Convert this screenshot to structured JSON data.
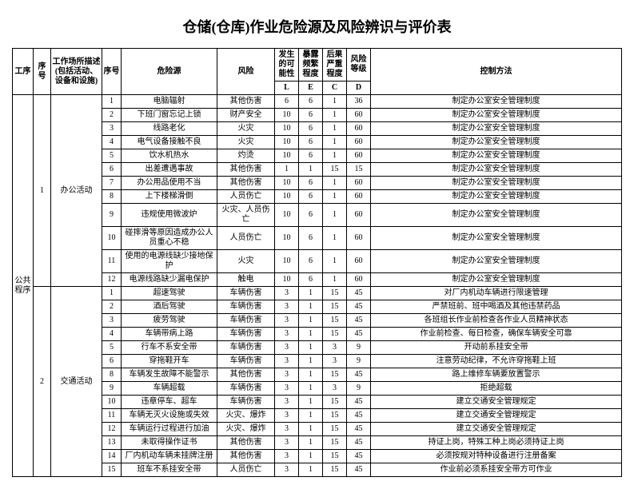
{
  "title": "仓储(仓库)作业危险源及风险辨识与评价表",
  "headers": {
    "gongxu": "工序",
    "xuhao": "序号",
    "changsuo": "工作场所描述\n(包括活动、设备和设施)",
    "xuhao2": "序号",
    "weixianyuan": "危险源",
    "fengxian": "风险",
    "L": "发生的可能性",
    "E": "暴露频繁程度",
    "C": "后果严重程度",
    "D": "风险等级",
    "Lsub": "L",
    "Esub": "E",
    "Csub": "C",
    "Dsub": "D",
    "kongzhi": "控制方法"
  },
  "gongxu_label": "公共程序",
  "groups": [
    {
      "xh": "1",
      "desc": "办公活动"
    },
    {
      "xh": "2",
      "desc": "交通活动"
    }
  ],
  "rows": [
    {
      "g": 0,
      "n": "1",
      "h": "电脑辐射",
      "r": "其他伤害",
      "L": "6",
      "E": "6",
      "C": "1",
      "D": "36",
      "k": "制定办公室安全管理制度"
    },
    {
      "g": 0,
      "n": "2",
      "h": "下班门窗忘记上锁",
      "r": "财产安全",
      "L": "10",
      "E": "6",
      "C": "1",
      "D": "60",
      "k": "制定办公室安全管理制度"
    },
    {
      "g": 0,
      "n": "3",
      "h": "线路老化",
      "r": "火灾",
      "L": "10",
      "E": "6",
      "C": "1",
      "D": "60",
      "k": "制定办公室安全管理制度"
    },
    {
      "g": 0,
      "n": "4",
      "h": "电气设备接触不良",
      "r": "火灾",
      "L": "10",
      "E": "6",
      "C": "1",
      "D": "60",
      "k": "制定办公室安全管理制度"
    },
    {
      "g": 0,
      "n": "5",
      "h": "饮水机热水",
      "r": "灼烫",
      "L": "10",
      "E": "6",
      "C": "1",
      "D": "60",
      "k": "制定办公室安全管理制度"
    },
    {
      "g": 0,
      "n": "6",
      "h": "出差遭遇事故",
      "r": "其他伤害",
      "L": "1",
      "E": "1",
      "C": "15",
      "D": "15",
      "k": "制定办公室安全管理制度"
    },
    {
      "g": 0,
      "n": "7",
      "h": "办公用品使用不当",
      "r": "其他伤害",
      "L": "10",
      "E": "6",
      "C": "1",
      "D": "60",
      "k": "制定办公室安全管理制度"
    },
    {
      "g": 0,
      "n": "8",
      "h": "上下楼梯滑倒",
      "r": "人员伤亡",
      "L": "10",
      "E": "6",
      "C": "1",
      "D": "60",
      "k": "制定办公室安全管理制度"
    },
    {
      "g": 0,
      "n": "9",
      "h": "违规使用微波炉",
      "r": "火灾、人员伤亡",
      "L": "10",
      "E": "6",
      "C": "1",
      "D": "60",
      "k": "制定办公室安全管理制度"
    },
    {
      "g": 0,
      "n": "10",
      "h": "碰摔滑等原因造成办公人员重心不稳",
      "r": "人员伤亡",
      "L": "10",
      "E": "6",
      "C": "1",
      "D": "60",
      "k": "制定办公室安全管理制度"
    },
    {
      "g": 0,
      "n": "11",
      "h": "使用的电源线缺少接地保护",
      "r": "火灾",
      "L": "10",
      "E": "6",
      "C": "1",
      "D": "60",
      "k": "制定办公室安全管理制度"
    },
    {
      "g": 0,
      "n": "12",
      "h": "电源线路缺少漏电保护",
      "r": "触电",
      "L": "10",
      "E": "6",
      "C": "1",
      "D": "60",
      "k": "制定办公室安全管理制度"
    },
    {
      "g": 1,
      "n": "1",
      "h": "超速驾驶",
      "r": "车辆伤害",
      "L": "3",
      "E": "1",
      "C": "15",
      "D": "45",
      "k": "对厂内机动车辆进行限速管理"
    },
    {
      "g": 1,
      "n": "2",
      "h": "酒后驾驶",
      "r": "车辆伤害",
      "L": "3",
      "E": "1",
      "C": "15",
      "D": "45",
      "k": "严禁班前、班中喝酒及其他违禁药品"
    },
    {
      "g": 1,
      "n": "3",
      "h": "疲劳驾驶",
      "r": "车辆伤害",
      "L": "3",
      "E": "1",
      "C": "15",
      "D": "45",
      "k": "各班组长作业前检查各作业人员精神状态"
    },
    {
      "g": 1,
      "n": "4",
      "h": "车辆带病上路",
      "r": "车辆伤害",
      "L": "3",
      "E": "1",
      "C": "15",
      "D": "45",
      "k": "作业前检查、每日检查，确保车辆安全可靠"
    },
    {
      "g": 1,
      "n": "5",
      "h": "行车不系安全带",
      "r": "车辆伤害",
      "L": "3",
      "E": "1",
      "C": "3",
      "D": "9",
      "k": "开动前系挂安全带"
    },
    {
      "g": 1,
      "n": "6",
      "h": "穿拖鞋开车",
      "r": "车辆伤害",
      "L": "3",
      "E": "1",
      "C": "3",
      "D": "9",
      "k": "注意劳动纪律，不允许穿拖鞋上班"
    },
    {
      "g": 1,
      "n": "8",
      "h": "车辆发生故障不能警示",
      "r": "其他伤害",
      "L": "3",
      "E": "1",
      "C": "15",
      "D": "45",
      "k": "路上维修车辆要放置警示"
    },
    {
      "g": 1,
      "n": "9",
      "h": "车辆超载",
      "r": "车辆伤害",
      "L": "3",
      "E": "1",
      "C": "3",
      "D": "9",
      "k": "拒绝超载"
    },
    {
      "g": 1,
      "n": "10",
      "h": "违章停车、超车",
      "r": "车辆伤害",
      "L": "3",
      "E": "1",
      "C": "15",
      "D": "45",
      "k": "建立交通安全管理规定"
    },
    {
      "g": 1,
      "n": "11",
      "h": "车辆无灭火设施或失效",
      "r": "火灾、爆炸",
      "L": "3",
      "E": "1",
      "C": "15",
      "D": "45",
      "k": "建立交通安全管理规定"
    },
    {
      "g": 1,
      "n": "12",
      "h": "车辆运行过程进行加油",
      "r": "火灾、爆炸",
      "L": "3",
      "E": "1",
      "C": "15",
      "D": "45",
      "k": "建立交通安全管理规定"
    },
    {
      "g": 1,
      "n": "13",
      "h": "未取得操作证书",
      "r": "其他伤害",
      "L": "3",
      "E": "1",
      "C": "15",
      "D": "45",
      "k": "持证上岗，特殊工种上岗必须持证上岗"
    },
    {
      "g": 1,
      "n": "14",
      "h": "厂内机动车辆未挂牌注册",
      "r": "其他伤害",
      "L": "3",
      "E": "1",
      "C": "15",
      "D": "45",
      "k": "必须按规对特种设备进行注册备案"
    },
    {
      "g": 1,
      "n": "15",
      "h": "班车不系挂安全带",
      "r": "人员伤亡",
      "L": "3",
      "E": "1",
      "C": "15",
      "D": "45",
      "k": "作业前必须系挂安全带方可作业"
    }
  ]
}
